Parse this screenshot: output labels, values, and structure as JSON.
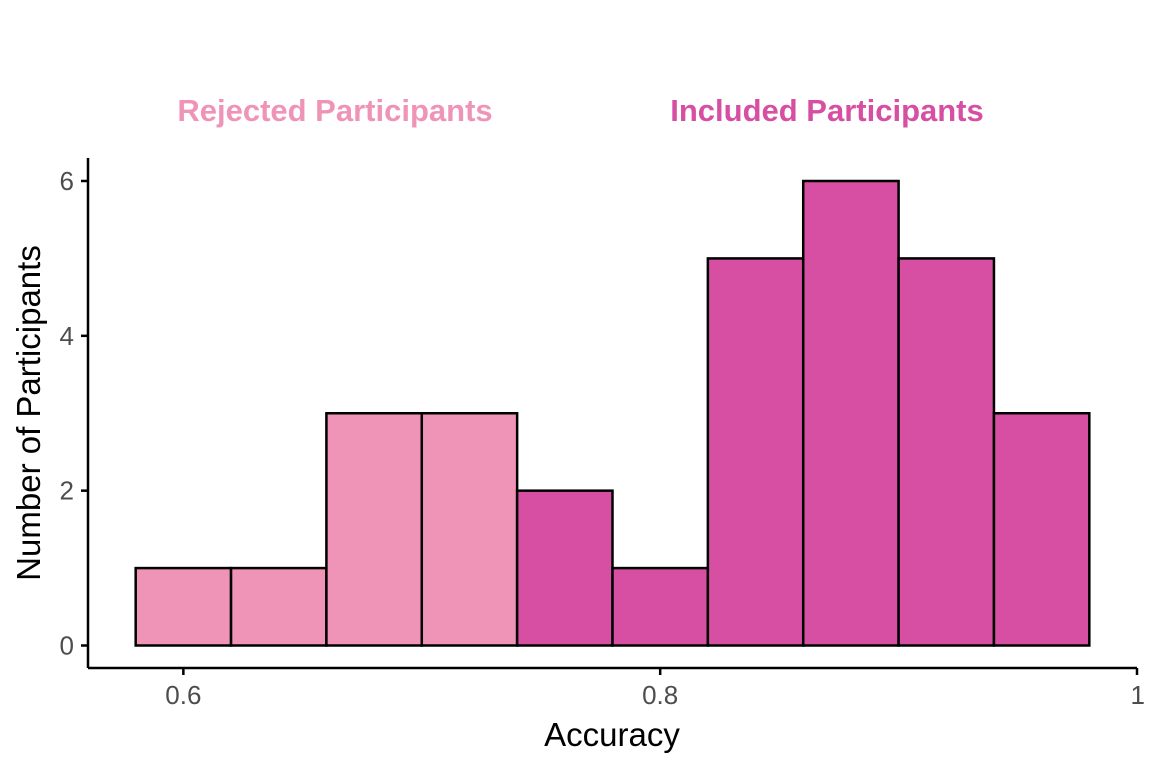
{
  "chart_data": {
    "type": "bar",
    "subtype": "histogram",
    "title": "",
    "xlabel": "Accuracy",
    "ylabel": "Number of Participants",
    "xlim": [
      0.56,
      1.0
    ],
    "ylim": [
      0,
      6.3
    ],
    "x_ticks": [
      0.6,
      0.8,
      1.0
    ],
    "x_tick_labels": [
      "0.6",
      "0.8",
      "1"
    ],
    "y_ticks": [
      0,
      2,
      4,
      6
    ],
    "y_tick_labels": [
      "0",
      "2",
      "4",
      "6"
    ],
    "grid": false,
    "bin_width": 0.04,
    "bins": [
      {
        "x0": 0.58,
        "x1": 0.62,
        "count": 1,
        "group": "Rejected Participants"
      },
      {
        "x0": 0.62,
        "x1": 0.66,
        "count": 1,
        "group": "Rejected Participants"
      },
      {
        "x0": 0.66,
        "x1": 0.7,
        "count": 3,
        "group": "Rejected Participants"
      },
      {
        "x0": 0.7,
        "x1": 0.74,
        "count": 3,
        "group": "Rejected Participants"
      },
      {
        "x0": 0.74,
        "x1": 0.78,
        "count": 2,
        "group": "Included Participants"
      },
      {
        "x0": 0.78,
        "x1": 0.82,
        "count": 1,
        "group": "Included Participants"
      },
      {
        "x0": 0.82,
        "x1": 0.86,
        "count": 5,
        "group": "Included Participants"
      },
      {
        "x0": 0.86,
        "x1": 0.9,
        "count": 6,
        "group": "Included Participants"
      },
      {
        "x0": 0.9,
        "x1": 0.94,
        "count": 5,
        "group": "Included Participants"
      },
      {
        "x0": 0.94,
        "x1": 0.98,
        "count": 3,
        "group": "Included Participants"
      }
    ],
    "groups": [
      {
        "name": "Rejected Participants",
        "color": "#f094b7"
      },
      {
        "name": "Included Participants",
        "color": "#d64fa3"
      }
    ],
    "bar_outline_color": "#000000"
  }
}
